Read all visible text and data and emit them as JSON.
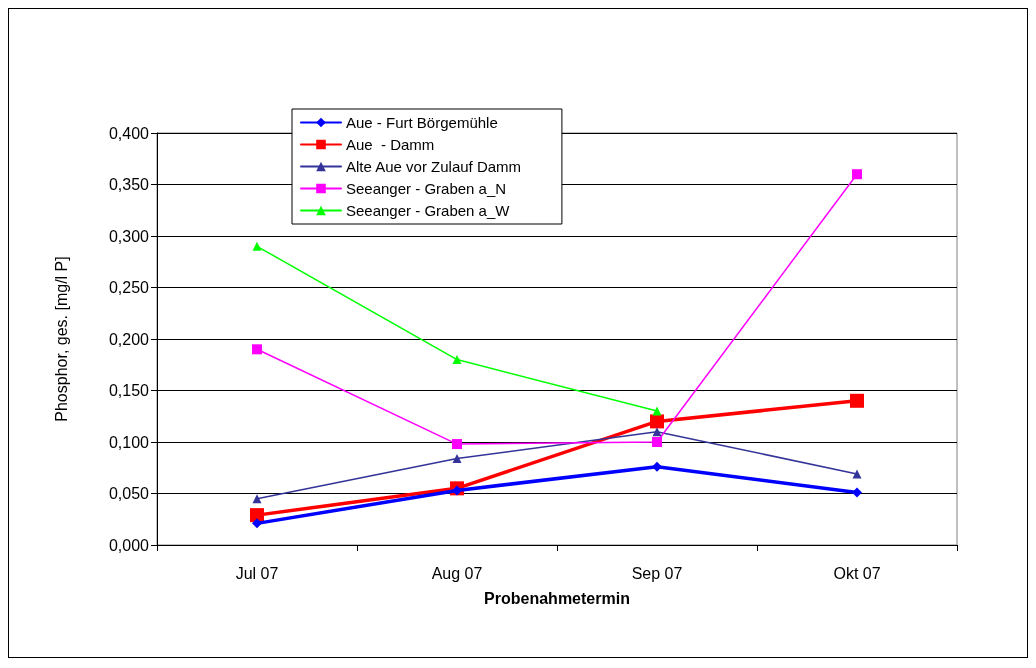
{
  "chart_data": {
    "type": "line",
    "xlabel": "Probenahmetermin",
    "ylabel": "Phosphor, ges. [mg/l P]",
    "categories": [
      "Jul 07",
      "Aug 07",
      "Sep 07",
      "Okt 07"
    ],
    "series": [
      {
        "name": "Aue - Furt Börgemühle",
        "color": "#0000ff",
        "marker": "diamond",
        "values": [
          0.021,
          0.053,
          0.076,
          0.051
        ]
      },
      {
        "name": "Aue  - Damm",
        "color": "#ff0000",
        "marker": "square",
        "values": [
          0.029,
          0.055,
          0.12,
          0.14
        ]
      },
      {
        "name": "Alte Aue vor Zulauf Damm",
        "color": "#333399",
        "marker": "triangle",
        "values": [
          0.045,
          0.084,
          0.11,
          0.069
        ]
      },
      {
        "name": "Seeanger - Graben a_N",
        "color": "#ff00ff",
        "marker": "square",
        "values": [
          0.19,
          0.098,
          0.1,
          0.36
        ]
      },
      {
        "name": "Seeanger - Graben a_W",
        "color": "#00ff00",
        "marker": "triangle",
        "values": [
          0.29,
          0.18,
          0.13,
          null
        ]
      }
    ],
    "ylim": [
      0,
      0.4
    ],
    "yticks": [
      {
        "value": 0,
        "label": "0,000"
      },
      {
        "value": 0.05,
        "label": "0,050"
      },
      {
        "value": 0.1,
        "label": "0,100"
      },
      {
        "value": 0.15,
        "label": "0,150"
      },
      {
        "value": 0.2,
        "label": "0,200"
      },
      {
        "value": 0.25,
        "label": "0,250"
      },
      {
        "value": 0.3,
        "label": "0,300"
      },
      {
        "value": 0.35,
        "label": "0,350"
      },
      {
        "value": 0.4,
        "label": "0,400"
      }
    ],
    "grid": "y",
    "legend": "top",
    "line_style": "solid"
  }
}
